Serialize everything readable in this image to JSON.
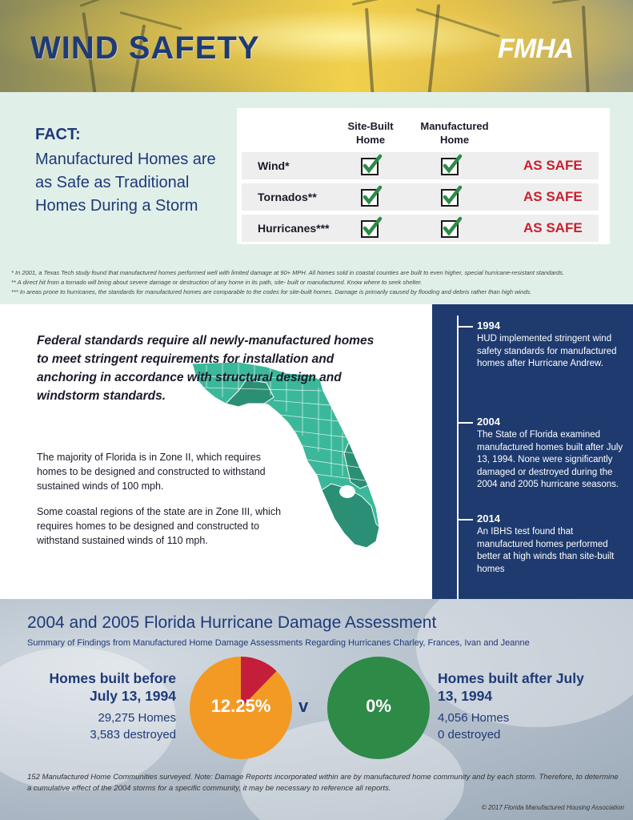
{
  "header": {
    "title": "WIND SAFETY",
    "logo_text": "FMHA"
  },
  "fact": {
    "heading": "FACT:",
    "body": "Manufactured Homes are as Safe as Traditional Homes During a Storm",
    "table": {
      "col_site_built": "Site-Built Home",
      "col_manufactured": "Manufactured Home",
      "rows": [
        {
          "label": "Wind*",
          "result": "AS SAFE"
        },
        {
          "label": "Tornados**",
          "result": "AS SAFE"
        },
        {
          "label": "Hurricanes***",
          "result": "AS SAFE"
        }
      ]
    },
    "footnotes": [
      "* In 2001, a Texas Tech study found that manufactured homes performed well with limited damage at 90+ MPH. All homes sold in coastal counties are built to even higher, special hurricane-resistant standards.",
      "** A direct hit from a tornado will bring about severe damage or destruction of any home in its path, site- built or manufactured. Know where to seek shelter.",
      "*** In areas prone to hurricanes, the standards for manufactured homes are comparable to the codes for site-built homes. Damage is primarily caused by flooding and debris rather than high winds."
    ]
  },
  "standards": {
    "federal": "Federal  standards require all newly-manufactured homes to meet stringent requirements for installation and anchoring in accordance with structural design and windstorm standards.",
    "zone2": "The majority of Florida is in Zone II, which requires homes to be designed and constructed to withstand sustained winds of 100 mph.",
    "zone3": "Some coastal regions of the state are in Zone III, which requires homes to be designed and constructed to withstand sustained winds of 110 mph."
  },
  "timeline": [
    {
      "year": "1994",
      "text": "HUD implemented stringent wind safety standards for manufactured homes after Hurricane Andrew."
    },
    {
      "year": "2004",
      "text": "The State of Florida examined manufactured homes built after July 13, 1994. None were significantly damaged or destroyed during the 2004 and 2005 hurricane seasons."
    },
    {
      "year": "2014",
      "text": "An IBHS test found that manufactured homes performed better at high winds than site-built homes"
    }
  ],
  "assessment": {
    "title": "2004 and 2005 Florida Hurricane Damage Assessment",
    "subtitle": "Summary of Findings from Manufactured Home Damage Assessments Regarding Hurricanes Charley, Frances, Ivan and Jeanne",
    "before": {
      "heading": "Homes built before July 13, 1994",
      "homes": "29,275 Homes",
      "destroyed": "3,583 destroyed",
      "percent_label": "12.25%",
      "percent_value": 12.25
    },
    "vs": "v",
    "after": {
      "heading": "Homes built after July 13, 1994",
      "homes": "4,056 Homes",
      "destroyed": "0 destroyed",
      "percent_label": "0%"
    },
    "note": "152 Manufactured Home Communities surveyed. Note: Damage Reports incorporated within are by manufactured home community and by each storm. Therefore, to determine a cumulative effect of the 2004 storms for a specific community, it may be necessary to reference all reports.",
    "copyright": "© 2017 Florida Manufactured Housing Association"
  },
  "colors": {
    "navy": "#1e3a78",
    "red": "#c8202e",
    "green": "#2d8a47",
    "orange": "#f39a25",
    "map_teal": "#3bb89a"
  }
}
